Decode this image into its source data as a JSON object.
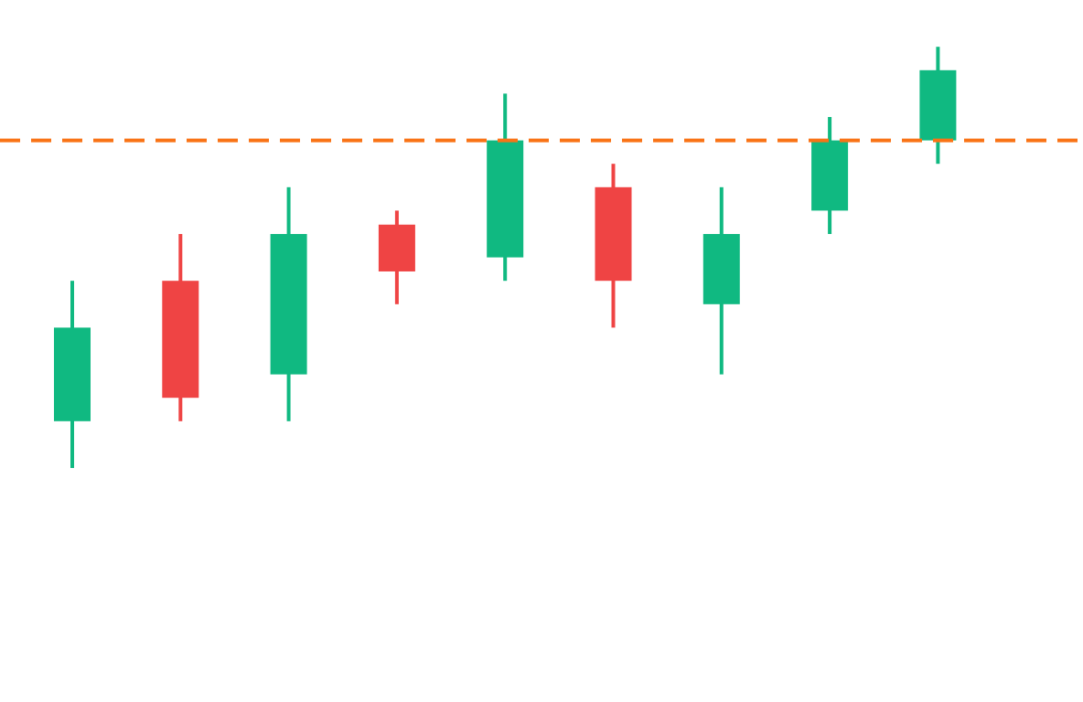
{
  "chart_data": {
    "type": "candlestick",
    "title": "",
    "xlabel": "",
    "ylabel": "",
    "ylim": [
      -6,
      24
    ],
    "grid": false,
    "legend": "none",
    "colors": {
      "up": "#10b981",
      "down": "#ef4444",
      "reference_line": "#f97316",
      "background": "#ffffff"
    },
    "candles": [
      {
        "open": 6,
        "high": 12,
        "low": 4,
        "close": 10
      },
      {
        "open": 12,
        "high": 14,
        "low": 6,
        "close": 7
      },
      {
        "open": 8,
        "high": 16,
        "low": 6,
        "close": 14
      },
      {
        "open": 14.4,
        "high": 15,
        "low": 11,
        "close": 12.4
      },
      {
        "open": 13,
        "high": 20,
        "low": 12,
        "close": 18
      },
      {
        "open": 16,
        "high": 17,
        "low": 10,
        "close": 12
      },
      {
        "open": 11,
        "high": 16,
        "low": 8,
        "close": 14
      },
      {
        "open": 15,
        "high": 19,
        "low": 14,
        "close": 18
      },
      {
        "open": 18,
        "high": 22,
        "low": 17,
        "close": 21
      }
    ],
    "reference_line": {
      "value": 18,
      "style": "dashed"
    }
  }
}
